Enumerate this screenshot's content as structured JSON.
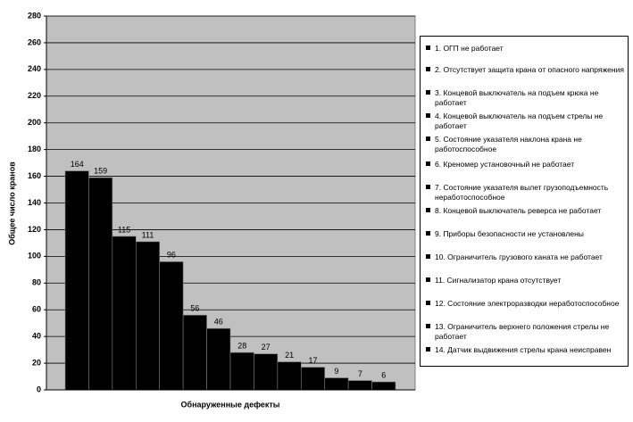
{
  "chart_data": {
    "type": "bar",
    "x_label": "Обнаруженные дефекты",
    "y_label": "Общее число кранов",
    "categories": [
      "1. ОГП не работает",
      "2. Отсутствует защита крана от опасного напряжения",
      "3. Концевой выключатель на подъем крюка не работает",
      "4. Концевой выключатель на подъем стрелы не работает",
      "5. Состояние указателя наклона крана не работоспособное",
      "6. Креномер установочный не работает",
      "7. Состояние указателя вылет грузоподъемность неработоспособное",
      "8. Концевой выключатель реверса не работает",
      "9. Приборы безопасности не установлены",
      "10. Ограничитель грузового каната не работает",
      "11. Сигнализатор крана отсутствует",
      "12. Состояние электроразводки неработоспособное",
      "13. Ограничитель верхнего положения стрелы не работает",
      "14. Датчик выдвижения стрелы крана неисправен"
    ],
    "values": [
      164,
      159,
      115,
      111,
      96,
      56,
      46,
      28,
      27,
      21,
      17,
      9,
      7,
      6
    ],
    "color": "#000000",
    "ylim": [
      0,
      280
    ],
    "yticks": [
      0,
      20,
      40,
      60,
      80,
      100,
      120,
      140,
      160,
      180,
      200,
      220,
      240,
      260,
      280
    ],
    "grid": true,
    "legend": "right"
  }
}
